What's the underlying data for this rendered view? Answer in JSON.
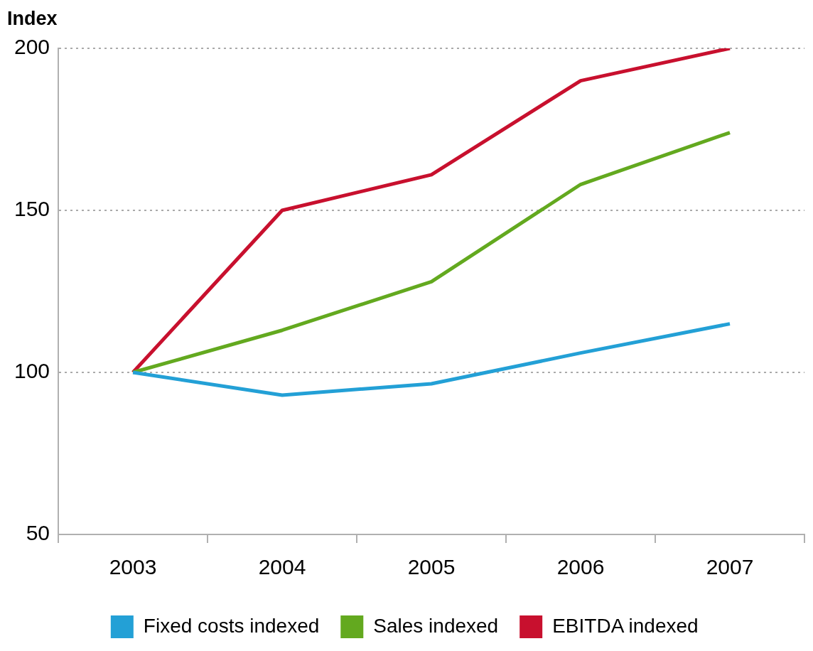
{
  "chart_data": {
    "type": "line",
    "ylabel": "Index",
    "categories": [
      "2003",
      "2004",
      "2005",
      "2006",
      "2007"
    ],
    "series": [
      {
        "name": "Fixed costs indexed",
        "color": "#23a0d6",
        "values": [
          100,
          93,
          96.5,
          106,
          115
        ]
      },
      {
        "name": "Sales indexed",
        "color": "#63a91f",
        "values": [
          100,
          113,
          128,
          158,
          174
        ]
      },
      {
        "name": "EBITDA indexed",
        "color": "#c8102e",
        "values": [
          100,
          150,
          161,
          190,
          200
        ]
      }
    ],
    "ylim": [
      50,
      200
    ],
    "yticks": [
      50,
      100,
      150,
      200
    ],
    "grid": "y",
    "legend": "bottom",
    "marker": "none",
    "line_style": "solid"
  }
}
